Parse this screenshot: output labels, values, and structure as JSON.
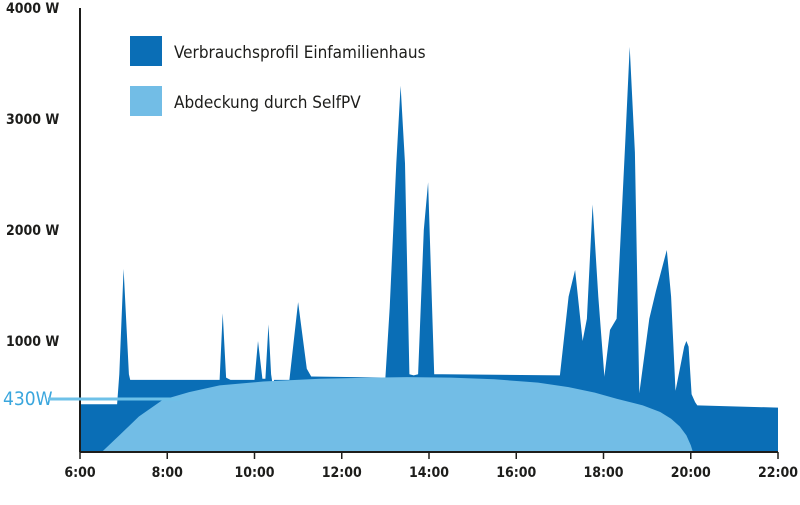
{
  "chart_data": {
    "type": "area",
    "x_unit": "hour",
    "xlim": [
      6,
      22
    ],
    "ylim": [
      0,
      4000
    ],
    "grid": false,
    "legend_position": "top-left",
    "x_ticks": [
      6,
      8,
      10,
      12,
      14,
      16,
      18,
      20,
      22
    ],
    "x_tick_labels": [
      "6:00",
      "8:00",
      "10:00",
      "12:00",
      "14:00",
      "16:00",
      "18:00",
      "20:00",
      "22:00"
    ],
    "y_ticks": [
      1000,
      2000,
      3000,
      4000
    ],
    "y_tick_labels": [
      "1000 W",
      "2000 W",
      "3000 W",
      "4000 W"
    ],
    "colors": {
      "consumption": "#0a6eb6",
      "coverage": "#72bde6",
      "axis": "#1d1d1b",
      "callout": "#3aa6dd"
    },
    "series": [
      {
        "name": "Verbrauchsprofil Einfamilienhaus",
        "color": "#0a6eb6",
        "x": [
          6.0,
          6.85,
          6.9,
          7.0,
          7.12,
          7.15,
          9.2,
          9.27,
          9.35,
          9.45,
          9.52,
          10.0,
          10.08,
          10.18,
          10.25,
          10.32,
          10.38,
          10.42,
          10.45,
          10.5,
          10.8,
          11.0,
          11.2,
          11.3,
          13.0,
          13.1,
          13.25,
          13.35,
          13.45,
          13.55,
          13.65,
          13.75,
          13.88,
          13.98,
          14.12,
          14.2,
          14.3,
          17.0,
          17.2,
          17.35,
          17.52,
          17.62,
          17.75,
          17.88,
          18.02,
          18.15,
          18.3,
          18.5,
          18.6,
          18.72,
          18.82,
          19.05,
          19.2,
          19.45,
          19.55,
          19.65,
          19.85,
          19.9,
          19.95,
          20.02,
          20.1,
          20.15,
          22.0
        ],
        "y": [
          430,
          430,
          700,
          1650,
          700,
          650,
          650,
          1250,
          670,
          650,
          650,
          650,
          1000,
          660,
          660,
          1150,
          700,
          600,
          650,
          650,
          650,
          1350,
          750,
          680,
          670,
          1300,
          2600,
          3300,
          2600,
          700,
          690,
          700,
          2000,
          2430,
          700,
          700,
          700,
          690,
          1400,
          1640,
          1000,
          1200,
          2230,
          1400,
          680,
          1100,
          1200,
          2800,
          3650,
          2700,
          530,
          1200,
          1450,
          1820,
          1400,
          550,
          950,
          1000,
          950,
          520,
          450,
          420,
          400
        ]
      },
      {
        "name": "Abdeckung durch SelfPV",
        "color": "#72bde6",
        "x": [
          6.5,
          6.9,
          7.35,
          7.9,
          8.5,
          9.2,
          10.2,
          11.5,
          12.7,
          13.5,
          14.5,
          15.5,
          16.5,
          17.2,
          17.8,
          18.3,
          18.9,
          19.3,
          19.55,
          19.75,
          19.9,
          20.0,
          20.05
        ],
        "y": [
          0,
          150,
          320,
          470,
          540,
          600,
          635,
          660,
          670,
          675,
          670,
          655,
          625,
          585,
          535,
          480,
          420,
          360,
          300,
          230,
          150,
          60,
          0
        ]
      }
    ],
    "annotations": [
      {
        "text": "430W",
        "x": 6.0,
        "y": 430
      }
    ]
  }
}
